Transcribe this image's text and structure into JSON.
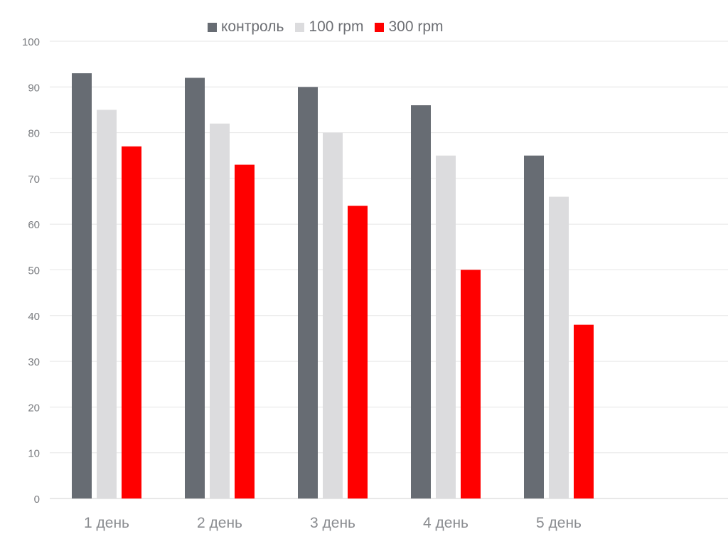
{
  "chart_data": {
    "type": "bar",
    "categories": [
      "1 день",
      "2 день",
      "3 день",
      "4 день",
      "5 день"
    ],
    "series": [
      {
        "name": "контроль",
        "color": "#676c73",
        "values": [
          93,
          92,
          90,
          86,
          75
        ]
      },
      {
        "name": "100 rpm",
        "color": "#dcdcde",
        "values": [
          85,
          82,
          80,
          75,
          66
        ]
      },
      {
        "name": "300 rpm",
        "color": "#ff0000",
        "values": [
          77,
          73,
          64,
          50,
          38
        ]
      }
    ],
    "ylim": [
      0,
      100
    ],
    "yticks": [
      "0",
      "10",
      "20",
      "30",
      "40",
      "50",
      "60",
      "70",
      "80",
      "90",
      "100"
    ],
    "grid": true,
    "legend_position": "top-center"
  }
}
